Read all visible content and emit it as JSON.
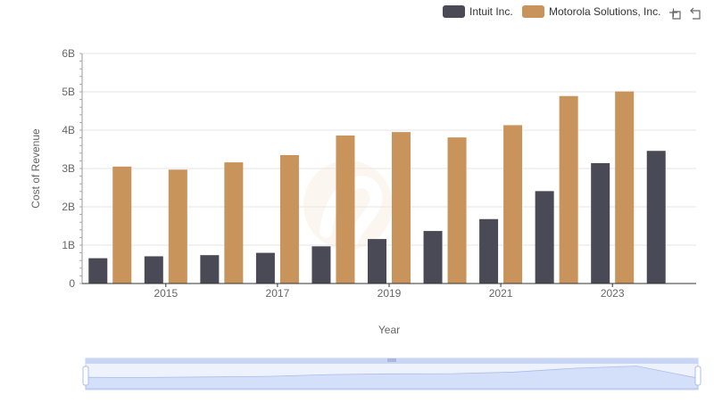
{
  "chart_data": {
    "type": "bar",
    "title": "",
    "xlabel": "Year",
    "ylabel": "Cost of Revenue",
    "ylim": [
      0,
      6000000000
    ],
    "yticks": [
      {
        "value": 0,
        "label": "0"
      },
      {
        "value": 1000000000,
        "label": "1B"
      },
      {
        "value": 2000000000,
        "label": "2B"
      },
      {
        "value": 3000000000,
        "label": "3B"
      },
      {
        "value": 4000000000,
        "label": "4B"
      },
      {
        "value": 5000000000,
        "label": "5B"
      },
      {
        "value": 6000000000,
        "label": "6B"
      }
    ],
    "categories": [
      2014,
      2015,
      2016,
      2017,
      2018,
      2019,
      2020,
      2021,
      2022,
      2023,
      2024
    ],
    "xtick_labels": [
      {
        "value": 2015,
        "label": "2015"
      },
      {
        "value": 2017,
        "label": "2017"
      },
      {
        "value": 2019,
        "label": "2019"
      },
      {
        "value": 2021,
        "label": "2021"
      },
      {
        "value": 2023,
        "label": "2023"
      }
    ],
    "series": [
      {
        "name": "Intuit Inc.",
        "color": "#4a4a56",
        "values": [
          660000000,
          710000000,
          740000000,
          800000000,
          970000000,
          1160000000,
          1370000000,
          1680000000,
          2410000000,
          3140000000,
          3460000000
        ]
      },
      {
        "name": "Motorola Solutions, Inc.",
        "color": "#c9935c",
        "values": [
          3050000000,
          2970000000,
          3160000000,
          3350000000,
          3860000000,
          3950000000,
          3810000000,
          4130000000,
          4890000000,
          5010000000,
          null
        ]
      }
    ],
    "grid": true,
    "legend_position": "top-right"
  },
  "toolbar": {
    "zoom_icon": "zoom-select-icon",
    "reset_icon": "zoom-reset-icon"
  },
  "watermark_icon": "watermark-logo-icon",
  "data_zoom": {
    "start_percent": 0,
    "end_percent": 100,
    "fill_color": "#dbe5fb",
    "border_color": "#c5d2f0"
  }
}
